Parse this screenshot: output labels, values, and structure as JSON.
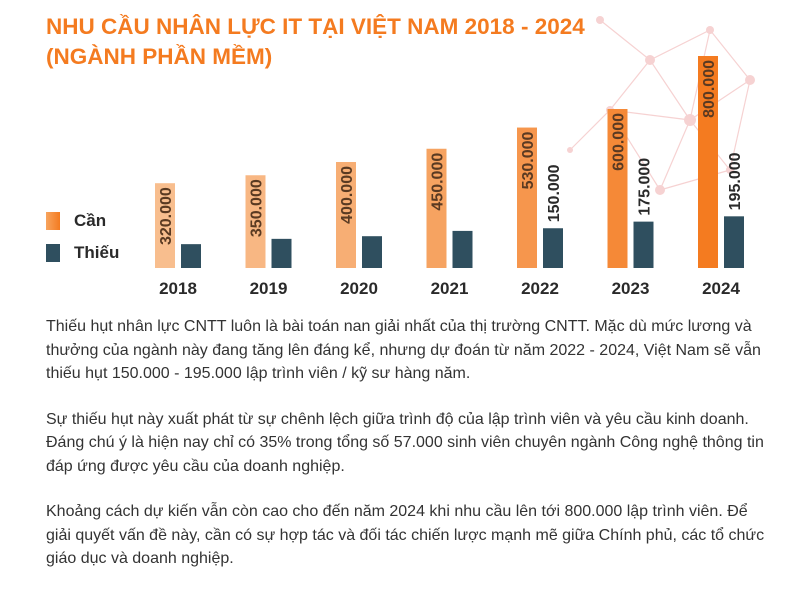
{
  "title_lines": [
    "NHU CẦU NHÂN LỰC IT TẠI VIỆT NAM 2018 - 2024",
    "(NGÀNH PHẦN MỀM)"
  ],
  "colors": {
    "accent": "#f47b20",
    "can_light": "#f8be8e",
    "can_mid": "#f7a45e",
    "can_dark": "#f47b20",
    "thieu": "#2f4f5f"
  },
  "legend": [
    {
      "label": "Cần",
      "color": "#f47b20"
    },
    {
      "label": "Thiếu",
      "color": "#2f4f5f"
    }
  ],
  "chart_data": {
    "type": "bar",
    "categories": [
      "2018",
      "2019",
      "2020",
      "2021",
      "2022",
      "2023",
      "2024"
    ],
    "series": [
      {
        "name": "Cần",
        "values": [
          320000,
          350000,
          400000,
          450000,
          530000,
          600000,
          800000
        ],
        "labels": [
          "320.000",
          "350.000",
          "400.000",
          "450.000",
          "530.000",
          "600.000",
          "800.000"
        ]
      },
      {
        "name": "Thiếu",
        "values": [
          90000,
          110000,
          120000,
          140000,
          150000,
          175000,
          195000
        ],
        "labels": [
          "",
          "",
          "",
          "",
          "150.000",
          "175.000",
          "195.000"
        ]
      }
    ],
    "legend_position": "left",
    "grid": false
  },
  "paragraphs": [
    "Thiếu hụt nhân lực CNTT luôn là bài toán nan giải nhất của thị trường CNTT. Mặc dù mức lương và thưởng của ngành này đang tăng lên đáng kể, nhưng dự đoán từ năm 2022 - 2024, Việt Nam sẽ vẫn thiếu hụt 150.000 - 195.000 lập trình viên / kỹ sư hàng năm.",
    "Sự thiếu hụt này xuất phát từ sự chênh lệch giữa trình độ của lập trình viên và yêu cầu kinh doanh. Đáng chú ý là hiện nay chỉ có 35% trong tổng số 57.000 sinh viên chuyên ngành Công nghệ thông tin đáp ứng được yêu cầu của doanh nghiệp.",
    "Khoảng cách dự kiến vẫn còn cao cho đến năm 2024 khi nhu cầu lên tới 800.000 lập trình viên. Để giải quyết vấn đề này, cần có sự hợp tác và đối tác chiến lược mạnh mẽ giữa Chính phủ, các tổ chức giáo dục và doanh nghiệp."
  ]
}
